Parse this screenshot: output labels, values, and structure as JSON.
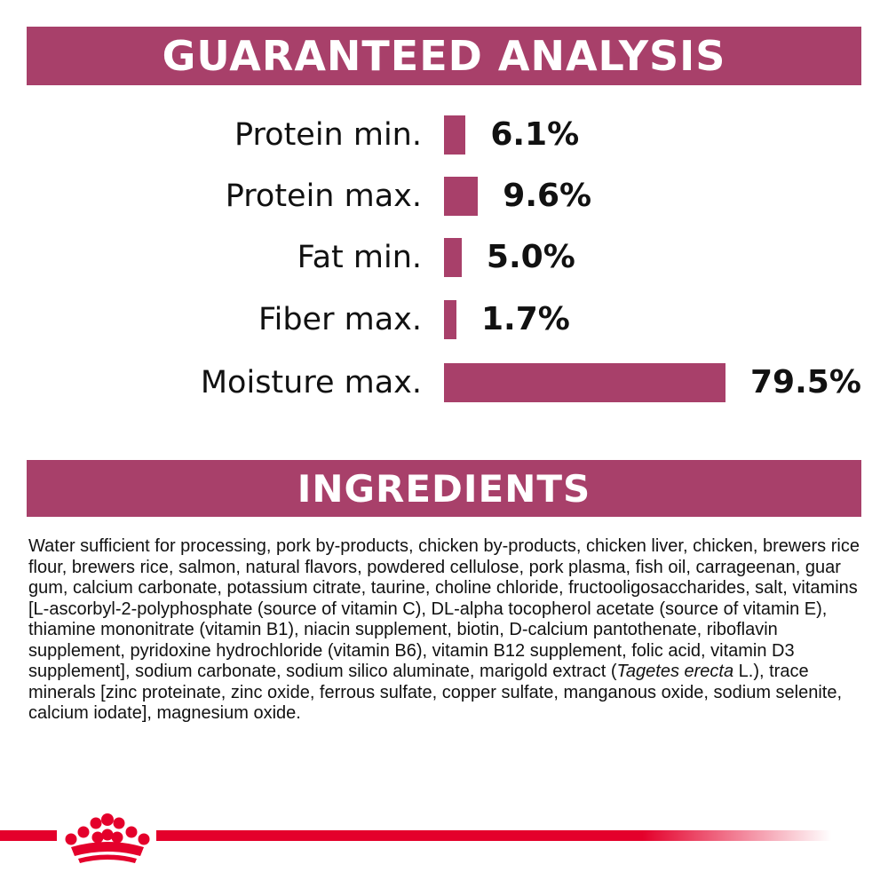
{
  "guaranteed_analysis": {
    "title": "GUARANTEED ANALYSIS"
  },
  "chart_data": {
    "type": "bar",
    "orientation": "horizontal",
    "title": "GUARANTEED ANALYSIS",
    "categories": [
      "Protein min.",
      "Protein max.",
      "Fat min.",
      "Fiber max.",
      "Moisture max."
    ],
    "values": [
      6.1,
      9.6,
      5.0,
      1.7,
      79.5
    ],
    "value_labels": [
      "6.1%",
      "9.6%",
      "5.0%",
      "1.7%",
      "79.5%"
    ],
    "unit": "%",
    "bar_color": "#A8406A",
    "grid": false
  },
  "ingredients": {
    "title": "INGREDIENTS",
    "text_before_italic": "Water sufficient for processing, pork by-products, chicken by-products, chicken liver, chicken, brewers rice flour, brewers rice, salmon, natural flavors, powdered cellulose, pork plasma, fish oil, carrageenan, guar gum, calcium carbonate, potassium citrate, taurine, choline chloride, fructooligosaccharides, salt, vitamins [L-ascorbyl-2-polyphosphate (source of vitamin C), DL-alpha tocopherol acetate (source of vitamin E), thiamine mononitrate (vitamin B1), niacin supplement, biotin, D-calcium pantothenate, riboflavin supplement, pyridoxine hydrochloride (vitamin B6), vitamin B12 supplement, folic acid, vitamin D3 supplement], sodium carbonate, sodium silico aluminate, marigold extract (",
    "italic": "Tagetes erecta",
    "text_after_italic": " L.), trace minerals [zinc proteinate, zinc oxide, ferrous sulfate, copper sulfate, manganous oxide, sodium selenite, calcium iodate], magnesium oxide."
  },
  "colors": {
    "accent": "#A8406A",
    "brand_red": "#E4002B"
  },
  "footer": {
    "logo_icon": "royal-canin-crown-icon"
  }
}
